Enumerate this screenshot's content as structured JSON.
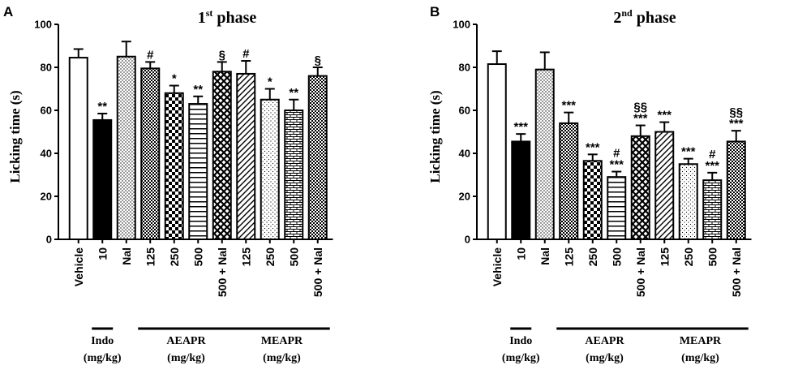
{
  "chart_data": [
    {
      "panel": "A",
      "type": "bar",
      "title": "1st phase",
      "title_main": "1",
      "title_sup": "st",
      "title_rest": " phase",
      "ylabel": "Licking time (s)",
      "ylim": [
        0,
        100
      ],
      "yticks": [
        0,
        20,
        40,
        60,
        80,
        100
      ],
      "categories": [
        "Vehicle",
        "10",
        "Nal",
        "125",
        "250",
        "500",
        "500 + Nal",
        "125",
        "250",
        "500",
        "500 + Nal"
      ],
      "values": [
        84.5,
        55.5,
        85,
        79.5,
        68,
        63,
        78,
        77,
        65,
        60,
        76
      ],
      "errors": [
        4,
        3,
        7,
        3,
        3.5,
        3.5,
        4.5,
        6,
        5,
        5,
        4
      ],
      "patterns": [
        "white",
        "black",
        "dots",
        "checker-fine",
        "checker-mid",
        "hlines",
        "crosshatch",
        "diag",
        "dots-sparse",
        "brick",
        "checker-fine"
      ],
      "significance": [
        "",
        "**",
        "",
        "#",
        "*",
        "**",
        "§",
        "#",
        "*",
        "**",
        "§"
      ],
      "groups": [
        {
          "name": "Indo",
          "unit": "(mg/kg)"
        },
        {
          "name": "AEAPR",
          "unit": "(mg/kg)"
        },
        {
          "name": "MEAPR",
          "unit": "(mg/kg)"
        }
      ]
    },
    {
      "panel": "B",
      "type": "bar",
      "title": "2nd phase",
      "title_main": "2",
      "title_sup": "nd",
      "title_rest": " phase",
      "ylabel": "Licking time (s)",
      "ylim": [
        0,
        100
      ],
      "yticks": [
        0,
        20,
        40,
        60,
        80,
        100
      ],
      "categories": [
        "Vehicle",
        "10",
        "Nal",
        "125",
        "250",
        "500",
        "500 + Nal",
        "125",
        "250",
        "500",
        "500 + Nal"
      ],
      "values": [
        81.5,
        45.5,
        79,
        54,
        36.5,
        29,
        48,
        50,
        35,
        27.5,
        45.5
      ],
      "errors": [
        6,
        3.5,
        8,
        5,
        3,
        2.5,
        5,
        4.5,
        2.5,
        3.5,
        5
      ],
      "patterns": [
        "white",
        "black",
        "dots",
        "checker-fine",
        "checker-mid",
        "hlines",
        "crosshatch",
        "diag",
        "dots-sparse",
        "brick",
        "checker-fine"
      ],
      "significance": [
        "",
        "***",
        "",
        "***",
        "***",
        "#\n***",
        "§§\n***",
        "***",
        "***",
        "#\n***",
        "§§\n***"
      ],
      "groups": [
        {
          "name": "Indo",
          "unit": "(mg/kg)"
        },
        {
          "name": "AEAPR",
          "unit": "(mg/kg)"
        },
        {
          "name": "MEAPR",
          "unit": "(mg/kg)"
        }
      ]
    }
  ]
}
